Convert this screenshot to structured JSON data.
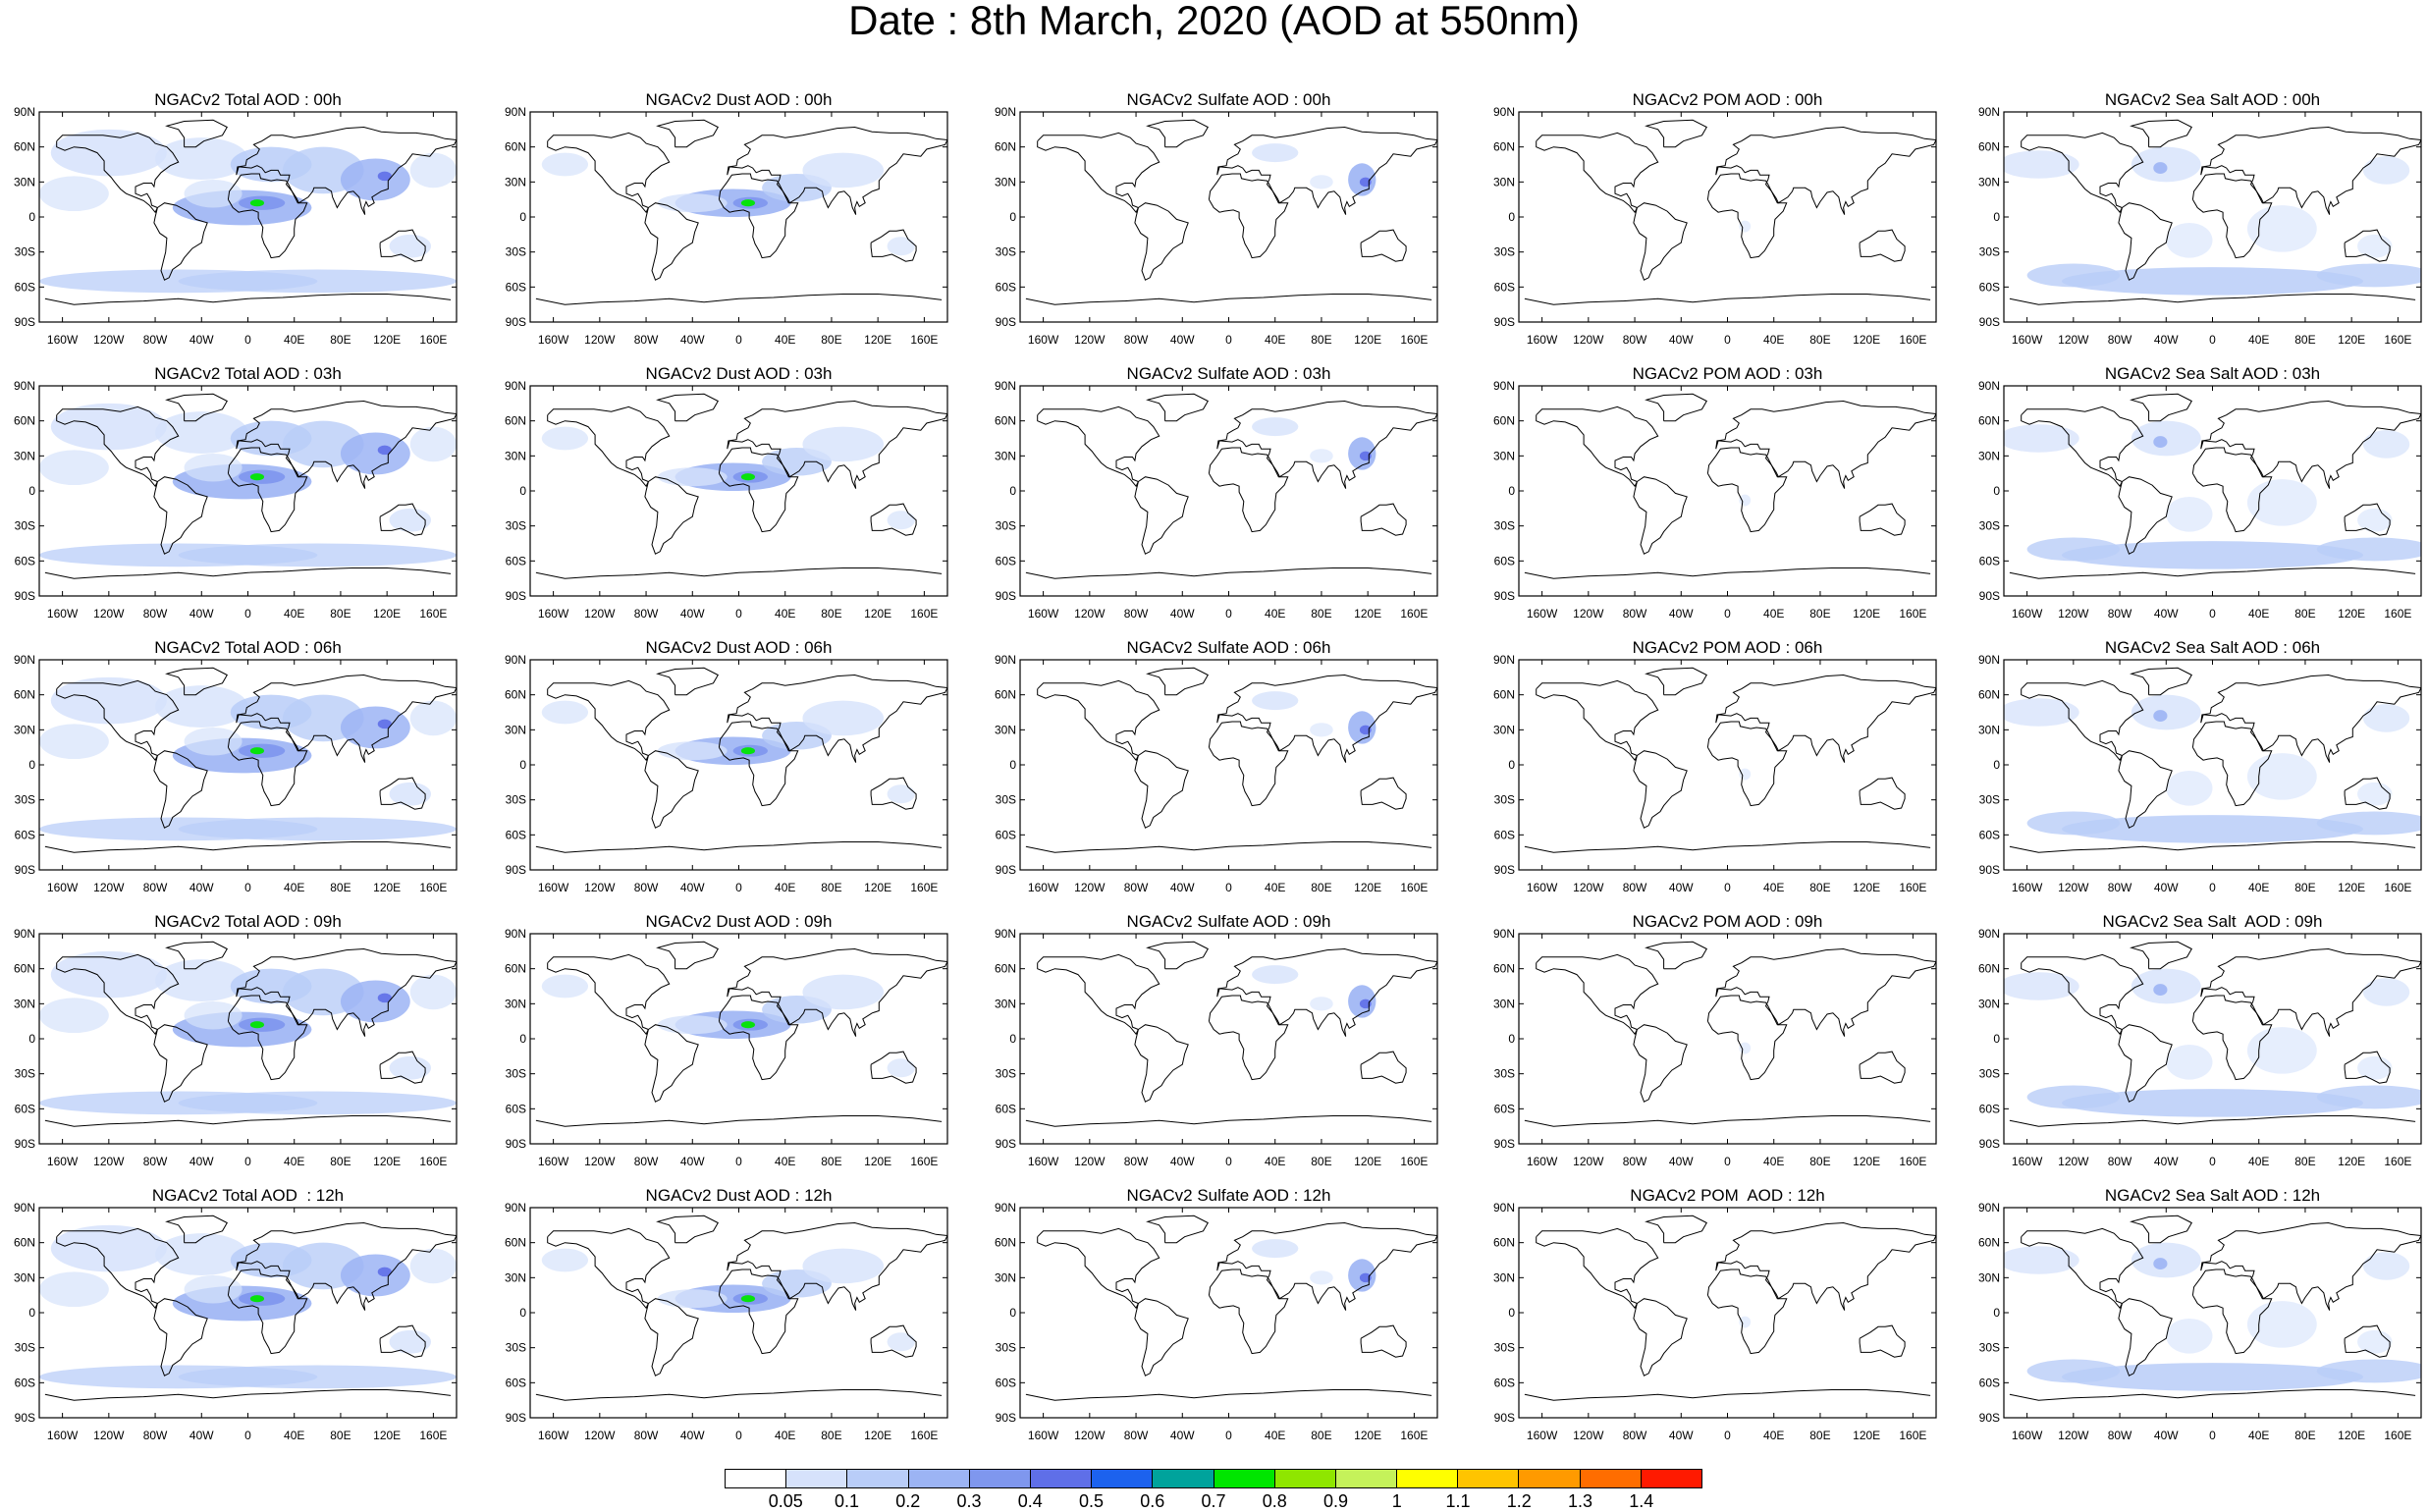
{
  "title": "Date : 8th March, 2020 (AOD at 550nm)",
  "panels": [
    {
      "title": "NGACv2 Total AOD : 00h",
      "species": "total"
    },
    {
      "title": "NGACv2 Dust AOD : 00h",
      "species": "dust"
    },
    {
      "title": "NGACv2 Sulfate AOD : 00h",
      "species": "sulfate"
    },
    {
      "title": "NGACv2 POM AOD : 00h",
      "species": "pom"
    },
    {
      "title": "NGACv2 Sea Salt AOD : 00h",
      "species": "seasalt"
    },
    {
      "title": "NGACv2 Total AOD : 03h",
      "species": "total"
    },
    {
      "title": "NGACv2 Dust AOD : 03h",
      "species": "dust"
    },
    {
      "title": "NGACv2 Sulfate AOD : 03h",
      "species": "sulfate"
    },
    {
      "title": "NGACv2 POM AOD : 03h",
      "species": "pom"
    },
    {
      "title": "NGACv2 Sea Salt AOD : 03h",
      "species": "seasalt"
    },
    {
      "title": "NGACv2 Total AOD : 06h",
      "species": "total"
    },
    {
      "title": "NGACv2 Dust AOD : 06h",
      "species": "dust"
    },
    {
      "title": "NGACv2 Sulfate AOD : 06h",
      "species": "sulfate"
    },
    {
      "title": "NGACv2 POM AOD : 06h",
      "species": "pom"
    },
    {
      "title": "NGACv2 Sea Salt AOD : 06h",
      "species": "seasalt"
    },
    {
      "title": "NGACv2 Total AOD : 09h",
      "species": "total"
    },
    {
      "title": "NGACv2 Dust AOD : 09h",
      "species": "dust"
    },
    {
      "title": "NGACv2 Sulfate AOD : 09h",
      "species": "sulfate"
    },
    {
      "title": "NGACv2 POM AOD : 09h",
      "species": "pom"
    },
    {
      "title": "NGACv2 Sea Salt  AOD : 09h",
      "species": "seasalt"
    },
    {
      "title": "NGACv2 Total AOD  : 12h",
      "species": "total"
    },
    {
      "title": "NGACv2 Dust AOD : 12h",
      "species": "dust"
    },
    {
      "title": "NGACv2 Sulfate AOD : 12h",
      "species": "sulfate"
    },
    {
      "title": "NGACv2 POM  AOD : 12h",
      "species": "pom"
    },
    {
      "title": "NGACv2 Sea Salt AOD : 12h",
      "species": "seasalt"
    }
  ],
  "lat_labels": [
    "90N",
    "60N",
    "30N",
    "0",
    "30S",
    "60S",
    "90S"
  ],
  "lon_labels": [
    "160W",
    "120W",
    "80W",
    "40W",
    "0",
    "40E",
    "80E",
    "120E",
    "160E"
  ],
  "lon_values": [
    -160,
    -120,
    -80,
    -40,
    0,
    40,
    80,
    120,
    160
  ],
  "colorbar": {
    "colors": [
      "#ffffff",
      "#d6e2fb",
      "#b9cdf8",
      "#9cb4f4",
      "#7f97ee",
      "#5f6fe8",
      "#1c62ee",
      "#00a39c",
      "#00e600",
      "#8fe600",
      "#c5f25a",
      "#ffff00",
      "#ffc400",
      "#ff9a00",
      "#ff6d00",
      "#ff1a00"
    ],
    "labels": [
      "0.05",
      "0.1",
      "0.2",
      "0.3",
      "0.4",
      "0.5",
      "0.6",
      "0.7",
      "0.8",
      "0.9",
      "1",
      "1.1",
      "1.2",
      "1.3",
      "1.4"
    ]
  }
}
